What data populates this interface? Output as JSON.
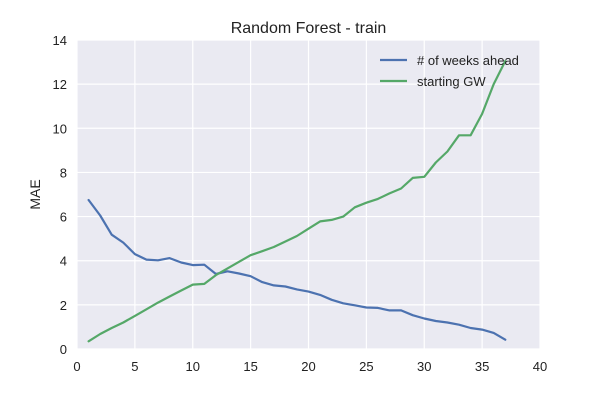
{
  "chart_data": {
    "type": "line",
    "title": "Random Forest - train",
    "xlabel": "",
    "ylabel": "MAE",
    "xlim": [
      0,
      40
    ],
    "ylim": [
      0,
      14
    ],
    "xticks": [
      0,
      5,
      10,
      15,
      20,
      25,
      30,
      35,
      40
    ],
    "yticks": [
      0,
      2,
      4,
      6,
      8,
      10,
      12,
      14
    ],
    "grid": true,
    "legend_position": "top-right",
    "background_color": "#EAEAF2",
    "grid_color": "#FFFFFF",
    "series": [
      {
        "name": "# of weeks ahead",
        "color": "#4C72B0",
        "x": [
          1,
          2,
          3,
          4,
          5,
          6,
          7,
          8,
          9,
          10,
          11,
          12,
          13,
          14,
          15,
          16,
          17,
          18,
          19,
          20,
          21,
          22,
          23,
          24,
          25,
          26,
          27,
          28,
          29,
          30,
          31,
          32,
          33,
          34,
          35,
          36,
          37
        ],
        "y": [
          6.75,
          6.05,
          5.18,
          4.82,
          4.3,
          4.05,
          4.02,
          4.12,
          3.92,
          3.8,
          3.82,
          3.4,
          3.52,
          3.42,
          3.3,
          3.03,
          2.88,
          2.83,
          2.7,
          2.6,
          2.45,
          2.23,
          2.07,
          1.98,
          1.88,
          1.86,
          1.75,
          1.75,
          1.53,
          1.38,
          1.27,
          1.2,
          1.1,
          0.95,
          0.88,
          0.73,
          0.42
        ]
      },
      {
        "name": "starting GW",
        "color": "#55A868",
        "x": [
          1,
          2,
          3,
          4,
          5,
          6,
          7,
          8,
          9,
          10,
          11,
          12,
          13,
          14,
          15,
          16,
          17,
          18,
          19,
          20,
          21,
          22,
          23,
          24,
          25,
          26,
          27,
          28,
          29,
          30,
          31,
          32,
          33,
          34,
          35,
          36,
          37
        ],
        "y": [
          0.35,
          0.68,
          0.95,
          1.2,
          1.5,
          1.8,
          2.1,
          2.38,
          2.65,
          2.92,
          2.95,
          3.35,
          3.65,
          3.95,
          4.25,
          4.43,
          4.62,
          4.87,
          5.12,
          5.45,
          5.78,
          5.85,
          6.0,
          6.42,
          6.63,
          6.8,
          7.05,
          7.27,
          7.75,
          7.8,
          8.45,
          8.95,
          9.68,
          9.68,
          10.65,
          12.0,
          13.05
        ]
      }
    ]
  }
}
